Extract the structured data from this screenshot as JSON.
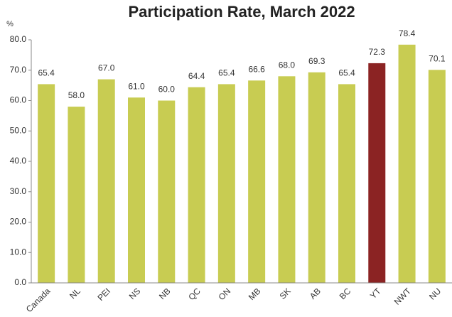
{
  "chart_data": {
    "type": "bar",
    "title": "Participation Rate, March 2022",
    "ylabel": "%",
    "categories": [
      "Canada",
      "NL",
      "PEI",
      "NS",
      "NB",
      "QC",
      "ON",
      "MB",
      "SK",
      "AB",
      "BC",
      "YT",
      "NWT",
      "NU"
    ],
    "values": [
      65.4,
      58.0,
      67.0,
      61.0,
      60.0,
      64.4,
      65.4,
      66.6,
      68.0,
      69.3,
      65.4,
      72.3,
      78.4,
      70.1
    ],
    "value_labels": [
      "65.4",
      "58.0",
      "67.0",
      "61.0",
      "60.0",
      "64.4",
      "65.4",
      "66.6",
      "68.0",
      "69.3",
      "65.4",
      "72.3",
      "78.4",
      "70.1"
    ],
    "colors": [
      "#c8cc52",
      "#c8cc52",
      "#c8cc52",
      "#c8cc52",
      "#c8cc52",
      "#c8cc52",
      "#c8cc52",
      "#c8cc52",
      "#c8cc52",
      "#c8cc52",
      "#c8cc52",
      "#8b2323",
      "#c8cc52",
      "#c8cc52"
    ],
    "ylim": [
      0,
      80
    ],
    "yticks": [
      {
        "value": 0,
        "label": "0.0"
      },
      {
        "value": 10,
        "label": "10.0"
      },
      {
        "value": 20,
        "label": "20.0"
      },
      {
        "value": 30,
        "label": "30.0"
      },
      {
        "value": 40,
        "label": "40.0"
      },
      {
        "value": 50,
        "label": "50.0"
      },
      {
        "value": 60,
        "label": "60.0"
      },
      {
        "value": 70,
        "label": "70.0"
      },
      {
        "value": 80,
        "label": "80.0"
      }
    ],
    "grid": false
  }
}
